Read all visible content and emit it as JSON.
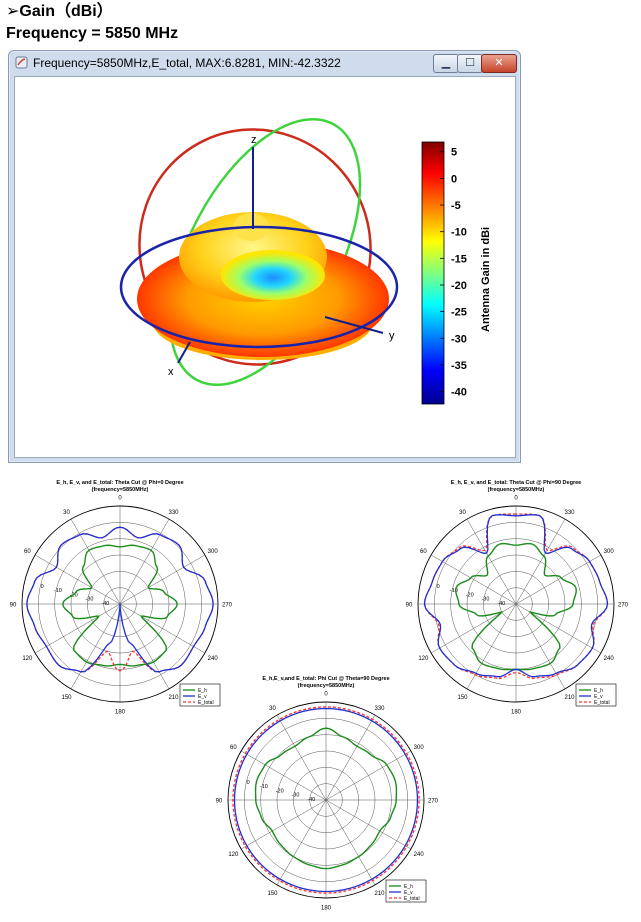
{
  "heading": {
    "gain": "➢Gain（dBi）",
    "frequency": "Frequency = 5850 MHz"
  },
  "window": {
    "title": "Frequency=5850MHz,E_total, MAX:6.8281, MIN:-42.3322",
    "min_glyph": "▁",
    "max_glyph": "☐",
    "close_glyph": "✕"
  },
  "figure3d": {
    "axis_labels": {
      "x": "x",
      "y": "y",
      "z": "z"
    },
    "colorbar": {
      "label": "Antenna Gain in dBi",
      "ticks": [
        "5",
        "0",
        "-5",
        "-10",
        "-15",
        "-20",
        "-25",
        "-30",
        "-35",
        "-40"
      ],
      "tick_values": [
        5,
        0,
        -5,
        -10,
        -15,
        -20,
        -25,
        -30,
        -35,
        -40
      ],
      "range": [
        -42.3322,
        6.8281
      ],
      "colormap": [
        "#7f0000",
        "#ff0000",
        "#ffff00",
        "#00ffff",
        "#0000ff",
        "#00008f"
      ]
    }
  },
  "colors": {
    "E_h": "#1a8c1a",
    "E_v": "#1e2fd0",
    "E_total": "#ff3030",
    "violet": "#a21caf"
  },
  "chart_data": [
    {
      "type": "polar",
      "title": "E_h, E_v, and E_total: Theta Cut @ Phi=0 Degree",
      "subtitle": "(frequency=5850MHz)",
      "angle_labels": [
        "0",
        "30",
        "60",
        "90",
        "120",
        "150",
        "180",
        "210",
        "240",
        "270",
        "300",
        "330"
      ],
      "radial_labels": [
        "0",
        "-10",
        "-20",
        "-30",
        "-40"
      ],
      "radial_range": [
        -50,
        10
      ],
      "legend": [
        "E_h",
        "E_v",
        "E_total"
      ],
      "legend_position": "bottom-right",
      "series": [
        {
          "name": "E_h",
          "values": [
            -15,
            -13,
            -12,
            -18,
            -30,
            -22,
            -15,
            -20,
            -35,
            -10,
            -9,
            -11,
            -13,
            -11,
            -9,
            -10,
            -35,
            -20,
            -15,
            -22,
            -30,
            -18,
            -12,
            -13
          ]
        },
        {
          "name": "E_v",
          "values": [
            -3,
            -8,
            -1,
            1,
            -5,
            4,
            7,
            4,
            2,
            3,
            -2,
            -25,
            -50,
            -25,
            -2,
            3,
            2,
            4,
            7,
            4,
            -5,
            1,
            -1,
            -8
          ]
        },
        {
          "name": "E_total",
          "values": [
            -3,
            -8,
            -1,
            1,
            -5,
            4,
            7,
            4,
            2,
            3,
            -2,
            -20,
            -9,
            -20,
            -2,
            3,
            2,
            4,
            7,
            4,
            -5,
            1,
            -1,
            -8
          ]
        }
      ]
    },
    {
      "type": "polar",
      "title": "E_h, E_v, and E_total: Theta Cut @ Phi=90 Degree",
      "subtitle": "(frequency=5850MHz)",
      "angle_labels": [
        "0",
        "30",
        "60",
        "90",
        "120",
        "150",
        "180",
        "210",
        "240",
        "270",
        "300",
        "330"
      ],
      "radial_labels": [
        "0",
        "-10",
        "-20",
        "-30",
        "-40"
      ],
      "radial_range": [
        -50,
        10
      ],
      "legend": [
        "E_h",
        "E_v",
        "E_total"
      ],
      "legend_position": "bottom-right",
      "series": [
        {
          "name": "E_h",
          "values": [
            -14,
            -12,
            -16,
            -25,
            -18,
            -12,
            -15,
            -25,
            -40,
            -12,
            -8,
            -9,
            -10,
            -9,
            -8,
            -12,
            -40,
            -25,
            -15,
            -12,
            -18,
            -25,
            -16,
            -12
          ]
        },
        {
          "name": "E_v",
          "values": [
            4,
            6,
            -14,
            -2,
            2,
            3,
            6,
            -2,
            4,
            3,
            -1,
            -4,
            -10,
            -4,
            -1,
            3,
            4,
            -2,
            6,
            3,
            2,
            -2,
            -14,
            6
          ]
        },
        {
          "name": "E_total",
          "values": [
            5,
            6,
            -12,
            -1,
            2,
            3,
            6,
            -1,
            4,
            3,
            0,
            -3,
            -8,
            -3,
            0,
            3,
            4,
            -1,
            6,
            3,
            2,
            -1,
            -12,
            6
          ]
        }
      ]
    },
    {
      "type": "polar",
      "title": "E_h,E_v,and E_total: Phi Cut @ Theta=90 Degree",
      "subtitle": "(frequency=5850MHz)",
      "angle_labels": [
        "0",
        "30",
        "60",
        "90",
        "120",
        "150",
        "180",
        "210",
        "240",
        "270",
        "300",
        "330"
      ],
      "radial_labels": [
        "0",
        "-10",
        "-20",
        "-30",
        "-40"
      ],
      "radial_range": [
        -50,
        10
      ],
      "legend": [
        "E_h",
        "E_v",
        "E_total"
      ],
      "legend_position": "bottom-right",
      "series": [
        {
          "name": "E_h",
          "values": [
            -6,
            -10,
            -12,
            -11,
            -7,
            -6,
            -7,
            -9,
            -12,
            -11,
            -10,
            -9,
            -8,
            -9,
            -10,
            -11,
            -12,
            -9,
            -7,
            -6,
            -7,
            -11,
            -12,
            -10
          ]
        },
        {
          "name": "E_v",
          "values": [
            6,
            6,
            6,
            6,
            6,
            6,
            6,
            6,
            6,
            6,
            6,
            6,
            6,
            6,
            6,
            6,
            6,
            6,
            6,
            6,
            6,
            6,
            6,
            6
          ]
        },
        {
          "name": "E_total",
          "values": [
            7,
            7,
            7,
            7,
            7,
            7,
            7,
            7,
            7,
            7,
            7,
            7,
            7,
            7,
            7,
            7,
            7,
            7,
            7,
            7,
            7,
            7,
            7,
            7
          ]
        }
      ]
    }
  ]
}
